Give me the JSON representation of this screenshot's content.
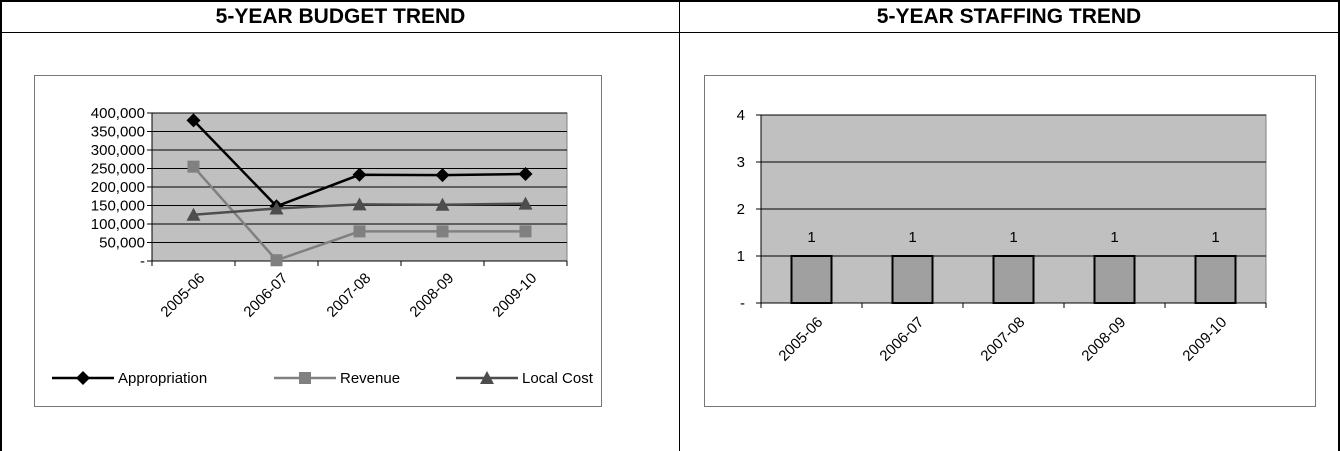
{
  "budget": {
    "heading": "5-YEAR BUDGET TREND",
    "chart_data": {
      "type": "line",
      "categories": [
        "2005-06",
        "2006-07",
        "2007-08",
        "2008-09",
        "2009-10"
      ],
      "series": [
        {
          "name": "Appropriation",
          "values": [
            380000,
            148000,
            233000,
            232000,
            235000
          ],
          "color": "#000000",
          "marker": "diamond"
        },
        {
          "name": "Revenue",
          "values": [
            255000,
            2000,
            80000,
            80000,
            80000
          ],
          "color": "#808080",
          "marker": "square"
        },
        {
          "name": "Local Cost",
          "values": [
            125000,
            142000,
            153000,
            152000,
            155000
          ],
          "color": "#4d4d4d",
          "marker": "triangle"
        }
      ],
      "yticks": [
        "-",
        "50,000",
        "100,000",
        "150,000",
        "200,000",
        "250,000",
        "300,000",
        "350,000",
        "400,000"
      ],
      "ylim": [
        0,
        400000
      ],
      "grid": true,
      "legend": "bottom",
      "plot_background": "#c0c0c0"
    }
  },
  "staffing": {
    "heading": "5-YEAR STAFFING TREND",
    "chart_data": {
      "type": "bar",
      "categories": [
        "2005-06",
        "2006-07",
        "2007-08",
        "2008-09",
        "2009-10"
      ],
      "values": [
        1,
        1,
        1,
        1,
        1
      ],
      "data_labels": [
        "1",
        "1",
        "1",
        "1",
        "1"
      ],
      "yticks": [
        "-",
        "1",
        "2",
        "3",
        "4"
      ],
      "ylim": [
        0,
        4
      ],
      "grid": true,
      "bar_color": "#a0a0a0",
      "plot_background": "#c0c0c0"
    }
  }
}
